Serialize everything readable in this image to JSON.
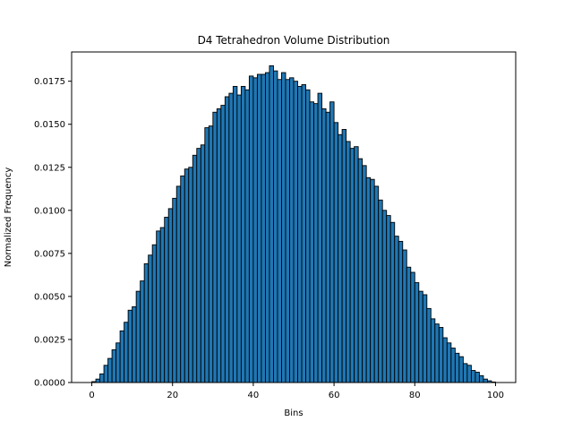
{
  "chart_data": {
    "type": "bar",
    "title": "D4 Tetrahedron Volume Distribution",
    "xlabel": "Bins",
    "ylabel": "Normalized Frequency",
    "xlim": [
      -5,
      105
    ],
    "ylim": [
      0,
      0.0192
    ],
    "xticks": [
      0,
      20,
      40,
      60,
      80,
      100
    ],
    "yticks": [
      0.0,
      0.0025,
      0.005,
      0.0075,
      0.01,
      0.0125,
      0.015,
      0.0175
    ],
    "ytick_labels": [
      "0.0000",
      "0.0025",
      "0.0050",
      "0.0075",
      "0.0100",
      "0.0125",
      "0.0150",
      "0.0175"
    ],
    "grid": false,
    "legend": false,
    "bar_width": 1,
    "bar_color": "#1f77b4",
    "edge_color": "#000000",
    "x": [
      0,
      1,
      2,
      3,
      4,
      5,
      6,
      7,
      8,
      9,
      10,
      11,
      12,
      13,
      14,
      15,
      16,
      17,
      18,
      19,
      20,
      21,
      22,
      23,
      24,
      25,
      26,
      27,
      28,
      29,
      30,
      31,
      32,
      33,
      34,
      35,
      36,
      37,
      38,
      39,
      40,
      41,
      42,
      43,
      44,
      45,
      46,
      47,
      48,
      49,
      50,
      51,
      52,
      53,
      54,
      55,
      56,
      57,
      58,
      59,
      60,
      61,
      62,
      63,
      64,
      65,
      66,
      67,
      68,
      69,
      70,
      71,
      72,
      73,
      74,
      75,
      76,
      77,
      78,
      79,
      80,
      81,
      82,
      83,
      84,
      85,
      86,
      87,
      88,
      89,
      90,
      91,
      92,
      93,
      94,
      95,
      96,
      97,
      98,
      99
    ],
    "values": [
      5e-05,
      0.0002,
      0.0005,
      0.001,
      0.0014,
      0.0019,
      0.0023,
      0.003,
      0.0035,
      0.0042,
      0.0044,
      0.0053,
      0.0059,
      0.0069,
      0.0074,
      0.008,
      0.0088,
      0.009,
      0.0096,
      0.0101,
      0.0107,
      0.0114,
      0.012,
      0.0124,
      0.0125,
      0.0132,
      0.0136,
      0.0138,
      0.0148,
      0.0149,
      0.0157,
      0.0159,
      0.0161,
      0.0166,
      0.0168,
      0.0172,
      0.0167,
      0.0172,
      0.017,
      0.0178,
      0.0177,
      0.0179,
      0.0179,
      0.018,
      0.0184,
      0.0181,
      0.0176,
      0.018,
      0.0176,
      0.0177,
      0.0175,
      0.0172,
      0.0173,
      0.017,
      0.0163,
      0.0162,
      0.0168,
      0.0159,
      0.0157,
      0.0163,
      0.0151,
      0.0144,
      0.0147,
      0.014,
      0.0136,
      0.0137,
      0.013,
      0.0126,
      0.0119,
      0.0118,
      0.0114,
      0.0106,
      0.01,
      0.0097,
      0.0093,
      0.0085,
      0.0082,
      0.0077,
      0.0067,
      0.0064,
      0.0058,
      0.0053,
      0.0051,
      0.0043,
      0.0037,
      0.0034,
      0.0032,
      0.0026,
      0.0023,
      0.002,
      0.0017,
      0.0015,
      0.0011,
      0.001,
      0.0007,
      0.0006,
      0.0004,
      0.0002,
      0.0001,
      3e-05
    ]
  }
}
